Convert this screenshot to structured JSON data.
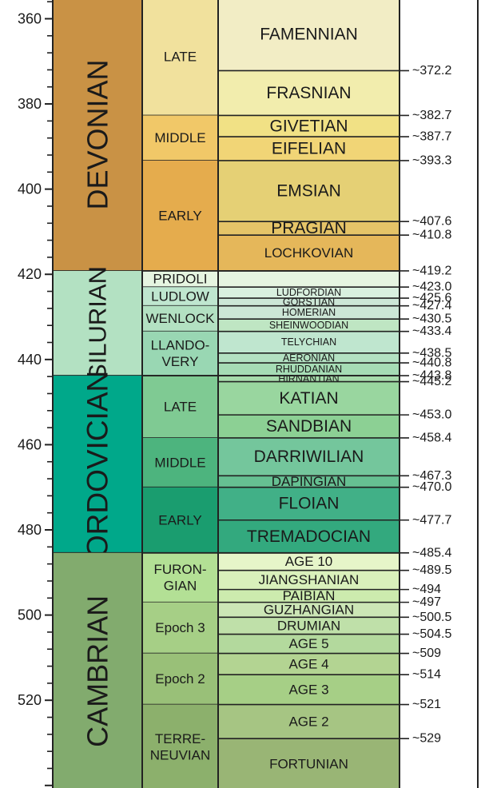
{
  "scale": {
    "ticks": [
      {
        "value": 360,
        "label": "360"
      },
      {
        "value": 380,
        "label": "380"
      },
      {
        "value": 400,
        "label": "400"
      },
      {
        "value": 420,
        "label": "420"
      },
      {
        "value": 440,
        "label": "440"
      },
      {
        "value": 460,
        "label": "460"
      },
      {
        "value": 480,
        "label": "480"
      },
      {
        "value": 500,
        "label": "500"
      },
      {
        "value": 520,
        "label": "520"
      }
    ],
    "minor_step": 4,
    "range": [
      355.6,
      540.6
    ]
  },
  "periods": [
    {
      "name": "DEVONIAN",
      "start": 355,
      "end": 419.2,
      "color": "#c99245"
    },
    {
      "name": "SILURIAN",
      "start": 419.2,
      "end": 443.8,
      "color": "#b3e1c2"
    },
    {
      "name": "ORDOVICIAN",
      "start": 443.8,
      "end": 485.4,
      "color": "#00a88a"
    },
    {
      "name": "CAMBRIAN",
      "start": 485.4,
      "end": 541,
      "color": "#82ab6e"
    }
  ],
  "epochs": [
    {
      "name": [
        "LATE"
      ],
      "start": 355,
      "end": 382.7,
      "color": "#f1e19d"
    },
    {
      "name": [
        "MIDDLE"
      ],
      "start": 382.7,
      "end": 393.3,
      "color": "#f1c868"
    },
    {
      "name": [
        "EARLY"
      ],
      "start": 393.3,
      "end": 419.2,
      "color": "#e5ac4d"
    },
    {
      "name": [
        "PRIDOLI"
      ],
      "start": 419.2,
      "end": 423.0,
      "color": "#e6f5e1"
    },
    {
      "name": [
        "LUDLOW"
      ],
      "start": 423.0,
      "end": 427.4,
      "color": "#bfe6cf"
    },
    {
      "name": [
        "WENLOCK"
      ],
      "start": 427.4,
      "end": 433.4,
      "color": "#b3e1c2"
    },
    {
      "name": [
        "LLANDO-",
        "VERY"
      ],
      "start": 433.4,
      "end": 443.8,
      "color": "#99d7b3"
    },
    {
      "name": [
        "LATE"
      ],
      "start": 443.8,
      "end": 458.4,
      "color": "#7fca93"
    },
    {
      "name": [
        "MIDDLE"
      ],
      "start": 458.4,
      "end": 470.0,
      "color": "#4db47e"
    },
    {
      "name": [
        "EARLY"
      ],
      "start": 470.0,
      "end": 485.4,
      "color": "#1a9d6f"
    },
    {
      "name": [
        "FURON-",
        "GIAN"
      ],
      "start": 485.4,
      "end": 497,
      "color": "#b3e095"
    },
    {
      "name": [
        "Epoch 3"
      ],
      "start": 497,
      "end": 509,
      "color": "#a6cf86"
    },
    {
      "name": [
        "Epoch 2"
      ],
      "start": 509,
      "end": 521,
      "color": "#99c078"
    },
    {
      "name": [
        "TERRE-",
        "NEUVIAN"
      ],
      "start": 521,
      "end": 541,
      "color": "#8cb06c"
    }
  ],
  "stages": [
    {
      "name": "FAMENNIAN",
      "start": 355,
      "end": 372.2,
      "color": "#f2edc5",
      "size": "l"
    },
    {
      "name": "FRASNIAN",
      "start": 372.2,
      "end": 382.7,
      "color": "#f2edad",
      "size": "l"
    },
    {
      "name": "GIVETIAN",
      "start": 382.7,
      "end": 387.7,
      "color": "#f1e185",
      "size": "l"
    },
    {
      "name": "EIFELIAN",
      "start": 387.7,
      "end": 393.3,
      "color": "#f1d576",
      "size": "l"
    },
    {
      "name": "EMSIAN",
      "start": 393.3,
      "end": 407.6,
      "color": "#e5d075",
      "size": "l"
    },
    {
      "name": "PRAGIAN",
      "start": 407.6,
      "end": 410.8,
      "color": "#e5c468",
      "size": "l"
    },
    {
      "name": "LOCHKOVIAN",
      "start": 410.8,
      "end": 419.2,
      "color": "#e5b75a",
      "size": "m"
    },
    {
      "name": "",
      "start": 419.2,
      "end": 423.0,
      "color": "#e6f5e1",
      "size": "s"
    },
    {
      "name": "LUDFORDIAN",
      "start": 423.0,
      "end": 425.6,
      "color": "#d9f0df",
      "size": "s"
    },
    {
      "name": "GORSTIAN",
      "start": 425.6,
      "end": 427.4,
      "color": "#cce6d6",
      "size": "s"
    },
    {
      "name": "HOMERIAN",
      "start": 427.4,
      "end": 430.5,
      "color": "#cce6d6",
      "size": "s"
    },
    {
      "name": "SHEINWOODIAN",
      "start": 430.5,
      "end": 433.4,
      "color": "#bfe6c3",
      "size": "s"
    },
    {
      "name": "TELYCHIAN",
      "start": 433.4,
      "end": 438.5,
      "color": "#bfe6cf",
      "size": "s"
    },
    {
      "name": "AERONIAN",
      "start": 438.5,
      "end": 440.8,
      "color": "#b3e1c2",
      "size": "s"
    },
    {
      "name": "RHUDDANIAN",
      "start": 440.8,
      "end": 443.8,
      "color": "#a6dcb5",
      "size": "s"
    },
    {
      "name": "HIRNANTIAN",
      "start": 443.8,
      "end": 445.2,
      "color": "#a6dbab",
      "size": "s"
    },
    {
      "name": "KATIAN",
      "start": 445.2,
      "end": 453.0,
      "color": "#99d69f",
      "size": "l"
    },
    {
      "name": "SANDBIAN",
      "start": 453.0,
      "end": 458.4,
      "color": "#8cd094",
      "size": "l"
    },
    {
      "name": "DARRIWILIAN",
      "start": 458.4,
      "end": 467.3,
      "color": "#74c69c",
      "size": "l"
    },
    {
      "name": "DAPINGIAN",
      "start": 467.3,
      "end": 470.0,
      "color": "#66c092",
      "size": "m"
    },
    {
      "name": "FLOIAN",
      "start": 470.0,
      "end": 477.7,
      "color": "#41b087",
      "size": "l"
    },
    {
      "name": "TREMADOCIAN",
      "start": 477.7,
      "end": 485.4,
      "color": "#33a97e",
      "size": "l"
    },
    {
      "name": "AGE 10",
      "start": 485.4,
      "end": 489.5,
      "color": "#e6f5c9",
      "size": "m"
    },
    {
      "name": "JIANGSHANIAN",
      "start": 489.5,
      "end": 494,
      "color": "#d9f0bb",
      "size": "m"
    },
    {
      "name": "PAIBIAN",
      "start": 494,
      "end": 497,
      "color": "#ccebae",
      "size": "m"
    },
    {
      "name": "GUZHANGIAN",
      "start": 497,
      "end": 500.5,
      "color": "#cce6b6",
      "size": "m"
    },
    {
      "name": "DRUMIAN",
      "start": 500.5,
      "end": 504.5,
      "color": "#bfe0a9",
      "size": "m"
    },
    {
      "name": "AGE 5",
      "start": 504.5,
      "end": 509,
      "color": "#b3d99d",
      "size": "m"
    },
    {
      "name": "AGE 4",
      "start": 509,
      "end": 514,
      "color": "#b3d492",
      "size": "m"
    },
    {
      "name": "AGE 3",
      "start": 514,
      "end": 521,
      "color": "#a6cf86",
      "size": "m"
    },
    {
      "name": "AGE 2",
      "start": 521,
      "end": 529,
      "color": "#a6c583",
      "size": "m"
    },
    {
      "name": "FORTUNIAN",
      "start": 529,
      "end": 541,
      "color": "#99b575",
      "size": "m"
    }
  ],
  "boundaries": [
    {
      "age": 372.2,
      "label": "~372.2"
    },
    {
      "age": 382.7,
      "label": "~382.7"
    },
    {
      "age": 387.7,
      "label": "~387.7"
    },
    {
      "age": 393.3,
      "label": "~393.3"
    },
    {
      "age": 407.6,
      "label": "~407.6"
    },
    {
      "age": 410.8,
      "label": "~410.8"
    },
    {
      "age": 419.2,
      "label": "~419.2"
    },
    {
      "age": 423.0,
      "label": "~423.0"
    },
    {
      "age": 425.6,
      "label": "~425.6"
    },
    {
      "age": 427.4,
      "label": "~427.4"
    },
    {
      "age": 430.5,
      "label": "~430.5"
    },
    {
      "age": 433.4,
      "label": "~433.4"
    },
    {
      "age": 438.5,
      "label": "~438.5"
    },
    {
      "age": 440.8,
      "label": "~440.8"
    },
    {
      "age": 443.8,
      "label": "~443.8"
    },
    {
      "age": 445.2,
      "label": "~445.2"
    },
    {
      "age": 453.0,
      "label": "~453.0"
    },
    {
      "age": 458.4,
      "label": "~458.4"
    },
    {
      "age": 467.3,
      "label": "~467.3"
    },
    {
      "age": 470.0,
      "label": "~470.0"
    },
    {
      "age": 477.7,
      "label": "~477.7"
    },
    {
      "age": 485.4,
      "label": "~485.4"
    },
    {
      "age": 489.5,
      "label": "~489.5"
    },
    {
      "age": 494,
      "label": "~494"
    },
    {
      "age": 497,
      "label": "~497"
    },
    {
      "age": 500.5,
      "label": "~500.5"
    },
    {
      "age": 504.5,
      "label": "~504.5"
    },
    {
      "age": 509,
      "label": "~509"
    },
    {
      "age": 514,
      "label": "~514"
    },
    {
      "age": 521,
      "label": "~521"
    },
    {
      "age": 529,
      "label": "~529"
    }
  ]
}
